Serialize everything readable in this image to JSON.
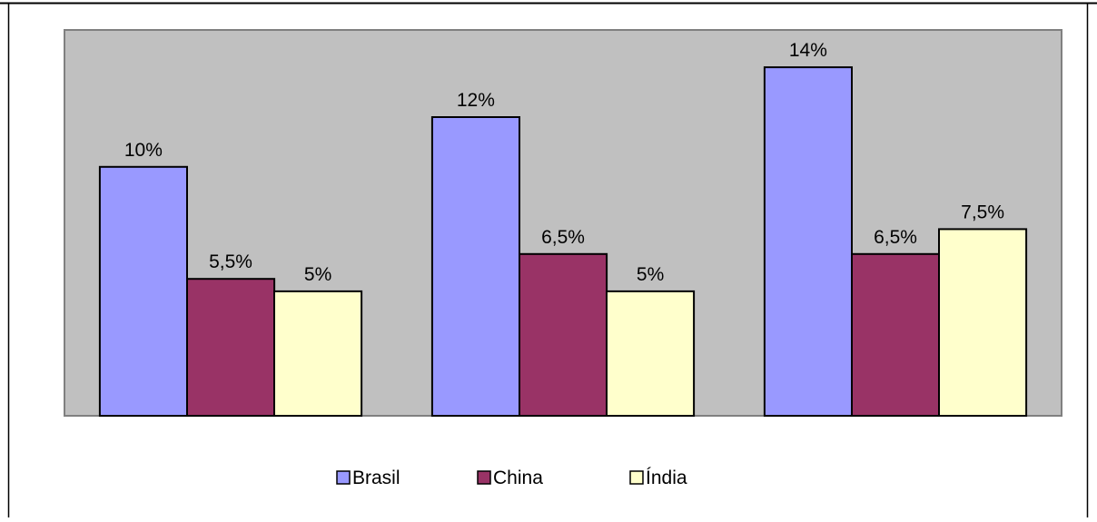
{
  "chart_data": {
    "type": "bar",
    "categories": [
      "",
      "",
      ""
    ],
    "series": [
      {
        "name": "Brasil",
        "values": [
          10,
          12,
          14
        ],
        "labels": [
          "10%",
          "12%",
          "14%"
        ],
        "color": "#9999ff"
      },
      {
        "name": "China",
        "values": [
          5.5,
          6.5,
          6.5
        ],
        "labels": [
          "5,5%",
          "6,5%",
          "6,5%"
        ],
        "color": "#993366"
      },
      {
        "name": "Índia",
        "values": [
          5,
          5,
          7.5
        ],
        "labels": [
          "5%",
          "5%",
          "7,5%"
        ],
        "color": "#ffffcc"
      }
    ],
    "title": "",
    "xlabel": "",
    "ylabel": "",
    "ylim": [
      0,
      15.5
    ],
    "grid": false,
    "legend_position": "bottom",
    "plot_background": "#c0c0c0"
  }
}
